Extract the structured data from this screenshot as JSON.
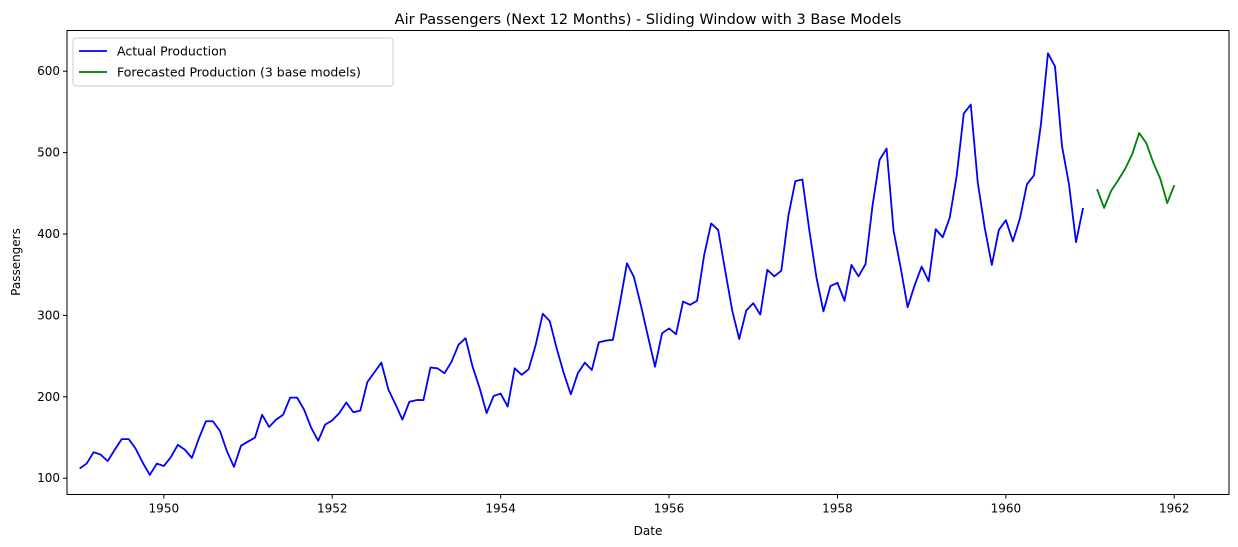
{
  "chart_data": {
    "type": "line",
    "title": "Air Passengers (Next 12 Months) - Sliding Window with 3 Base Models",
    "xlabel": "Date",
    "ylabel": "Passengers",
    "xlim": [
      1948.85,
      1962.65
    ],
    "ylim": [
      80,
      650
    ],
    "xticks": [
      1950,
      1952,
      1954,
      1956,
      1958,
      1960,
      1962
    ],
    "yticks": [
      100,
      200,
      300,
      400,
      500,
      600
    ],
    "grid": false,
    "legend_position": "top-left",
    "series": [
      {
        "name": "Actual Production",
        "color": "#0000ff",
        "start": 1949.0,
        "step": 0.0833333,
        "values": [
          112,
          118,
          132,
          129,
          121,
          135,
          148,
          148,
          136,
          119,
          104,
          118,
          115,
          126,
          141,
          135,
          125,
          149,
          170,
          170,
          158,
          133,
          114,
          140,
          145,
          150,
          178,
          163,
          172,
          178,
          199,
          199,
          184,
          162,
          146,
          166,
          171,
          180,
          193,
          181,
          183,
          218,
          230,
          242,
          209,
          191,
          172,
          194,
          196,
          196,
          236,
          235,
          229,
          243,
          264,
          272,
          237,
          211,
          180,
          201,
          204,
          188,
          235,
          227,
          234,
          264,
          302,
          293,
          259,
          229,
          203,
          229,
          242,
          233,
          267,
          269,
          270,
          315,
          364,
          347,
          312,
          274,
          237,
          278,
          284,
          277,
          317,
          313,
          318,
          374,
          413,
          405,
          355,
          306,
          271,
          306,
          315,
          301,
          356,
          348,
          355,
          422,
          465,
          467,
          404,
          347,
          305,
          336,
          340,
          318,
          362,
          348,
          363,
          435,
          491,
          505,
          404,
          359,
          310,
          337,
          360,
          342,
          406,
          396,
          420,
          472,
          548,
          559,
          463,
          407,
          362,
          405,
          417,
          391,
          419,
          461,
          472,
          535,
          622,
          606,
          508,
          461,
          390,
          432
        ]
      },
      {
        "name": "Forecasted Production (3 base models)",
        "color": "#008000",
        "start": 1961.0833,
        "step": 0.0833333,
        "values": [
          455,
          432,
          453,
          466,
          480,
          498,
          524,
          512,
          488,
          468,
          438,
          460
        ]
      }
    ]
  }
}
